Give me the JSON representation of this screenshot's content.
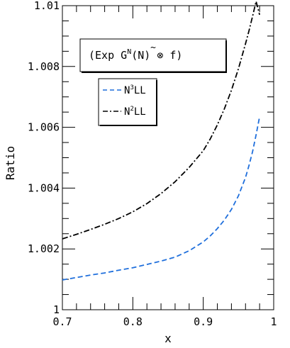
{
  "chart_data": {
    "type": "line",
    "xlabel": "x",
    "ylabel": "Ratio",
    "xlim": [
      0.7,
      1.0
    ],
    "ylim": [
      1.0,
      1.01
    ],
    "x_ticks": [
      0.7,
      0.8,
      0.9,
      1.0
    ],
    "x_tick_labels": [
      "0.7",
      "0.8",
      "0.9",
      "1"
    ],
    "y_ticks": [
      1.0,
      1.002,
      1.004,
      1.006,
      1.008,
      1.01
    ],
    "y_tick_labels": [
      "1",
      "1.002",
      "1.004",
      "1.006",
      "1.008",
      "1.01"
    ],
    "grid": false,
    "legend_position": "top-left",
    "title_box": {
      "prefix": "(Exp G",
      "sup": "N",
      "middle": "(",
      "tilde_letter": "N",
      "suffix": ") ⊗ f)"
    },
    "series": [
      {
        "name": "N³LL",
        "label_base": "N",
        "label_sup": "3",
        "label_rest": "LL",
        "color": "#1f6fdc",
        "dash": "dashed",
        "x": [
          0.7,
          0.72,
          0.74,
          0.76,
          0.78,
          0.8,
          0.82,
          0.84,
          0.86,
          0.88,
          0.9,
          0.91,
          0.92,
          0.93,
          0.94,
          0.95,
          0.96,
          0.965,
          0.97,
          0.975,
          0.98
        ],
        "y": [
          1.00098,
          1.00106,
          1.00114,
          1.00121,
          1.0013,
          1.00138,
          1.00149,
          1.0016,
          1.00173,
          1.00194,
          1.00223,
          1.00243,
          1.00267,
          1.00295,
          1.0033,
          1.00375,
          1.00435,
          1.00475,
          1.0052,
          1.00575,
          1.00635
        ]
      },
      {
        "name": "N²LL",
        "label_base": "N",
        "label_sup": "2",
        "label_rest": "LL",
        "color": "#000000",
        "dash": "dashdot",
        "x": [
          0.7,
          0.72,
          0.74,
          0.76,
          0.78,
          0.8,
          0.82,
          0.84,
          0.86,
          0.88,
          0.9,
          0.91,
          0.92,
          0.93,
          0.94,
          0.95,
          0.96,
          0.965,
          0.97,
          0.975,
          0.98
        ],
        "y": [
          1.00233,
          1.00248,
          1.00264,
          1.00281,
          1.003,
          1.00322,
          1.00349,
          1.00382,
          1.00421,
          1.00468,
          1.00523,
          1.00562,
          1.00608,
          1.00661,
          1.00722,
          1.00793,
          1.00875,
          1.00918,
          1.00965,
          1.01014,
          1.0097
        ]
      }
    ]
  }
}
